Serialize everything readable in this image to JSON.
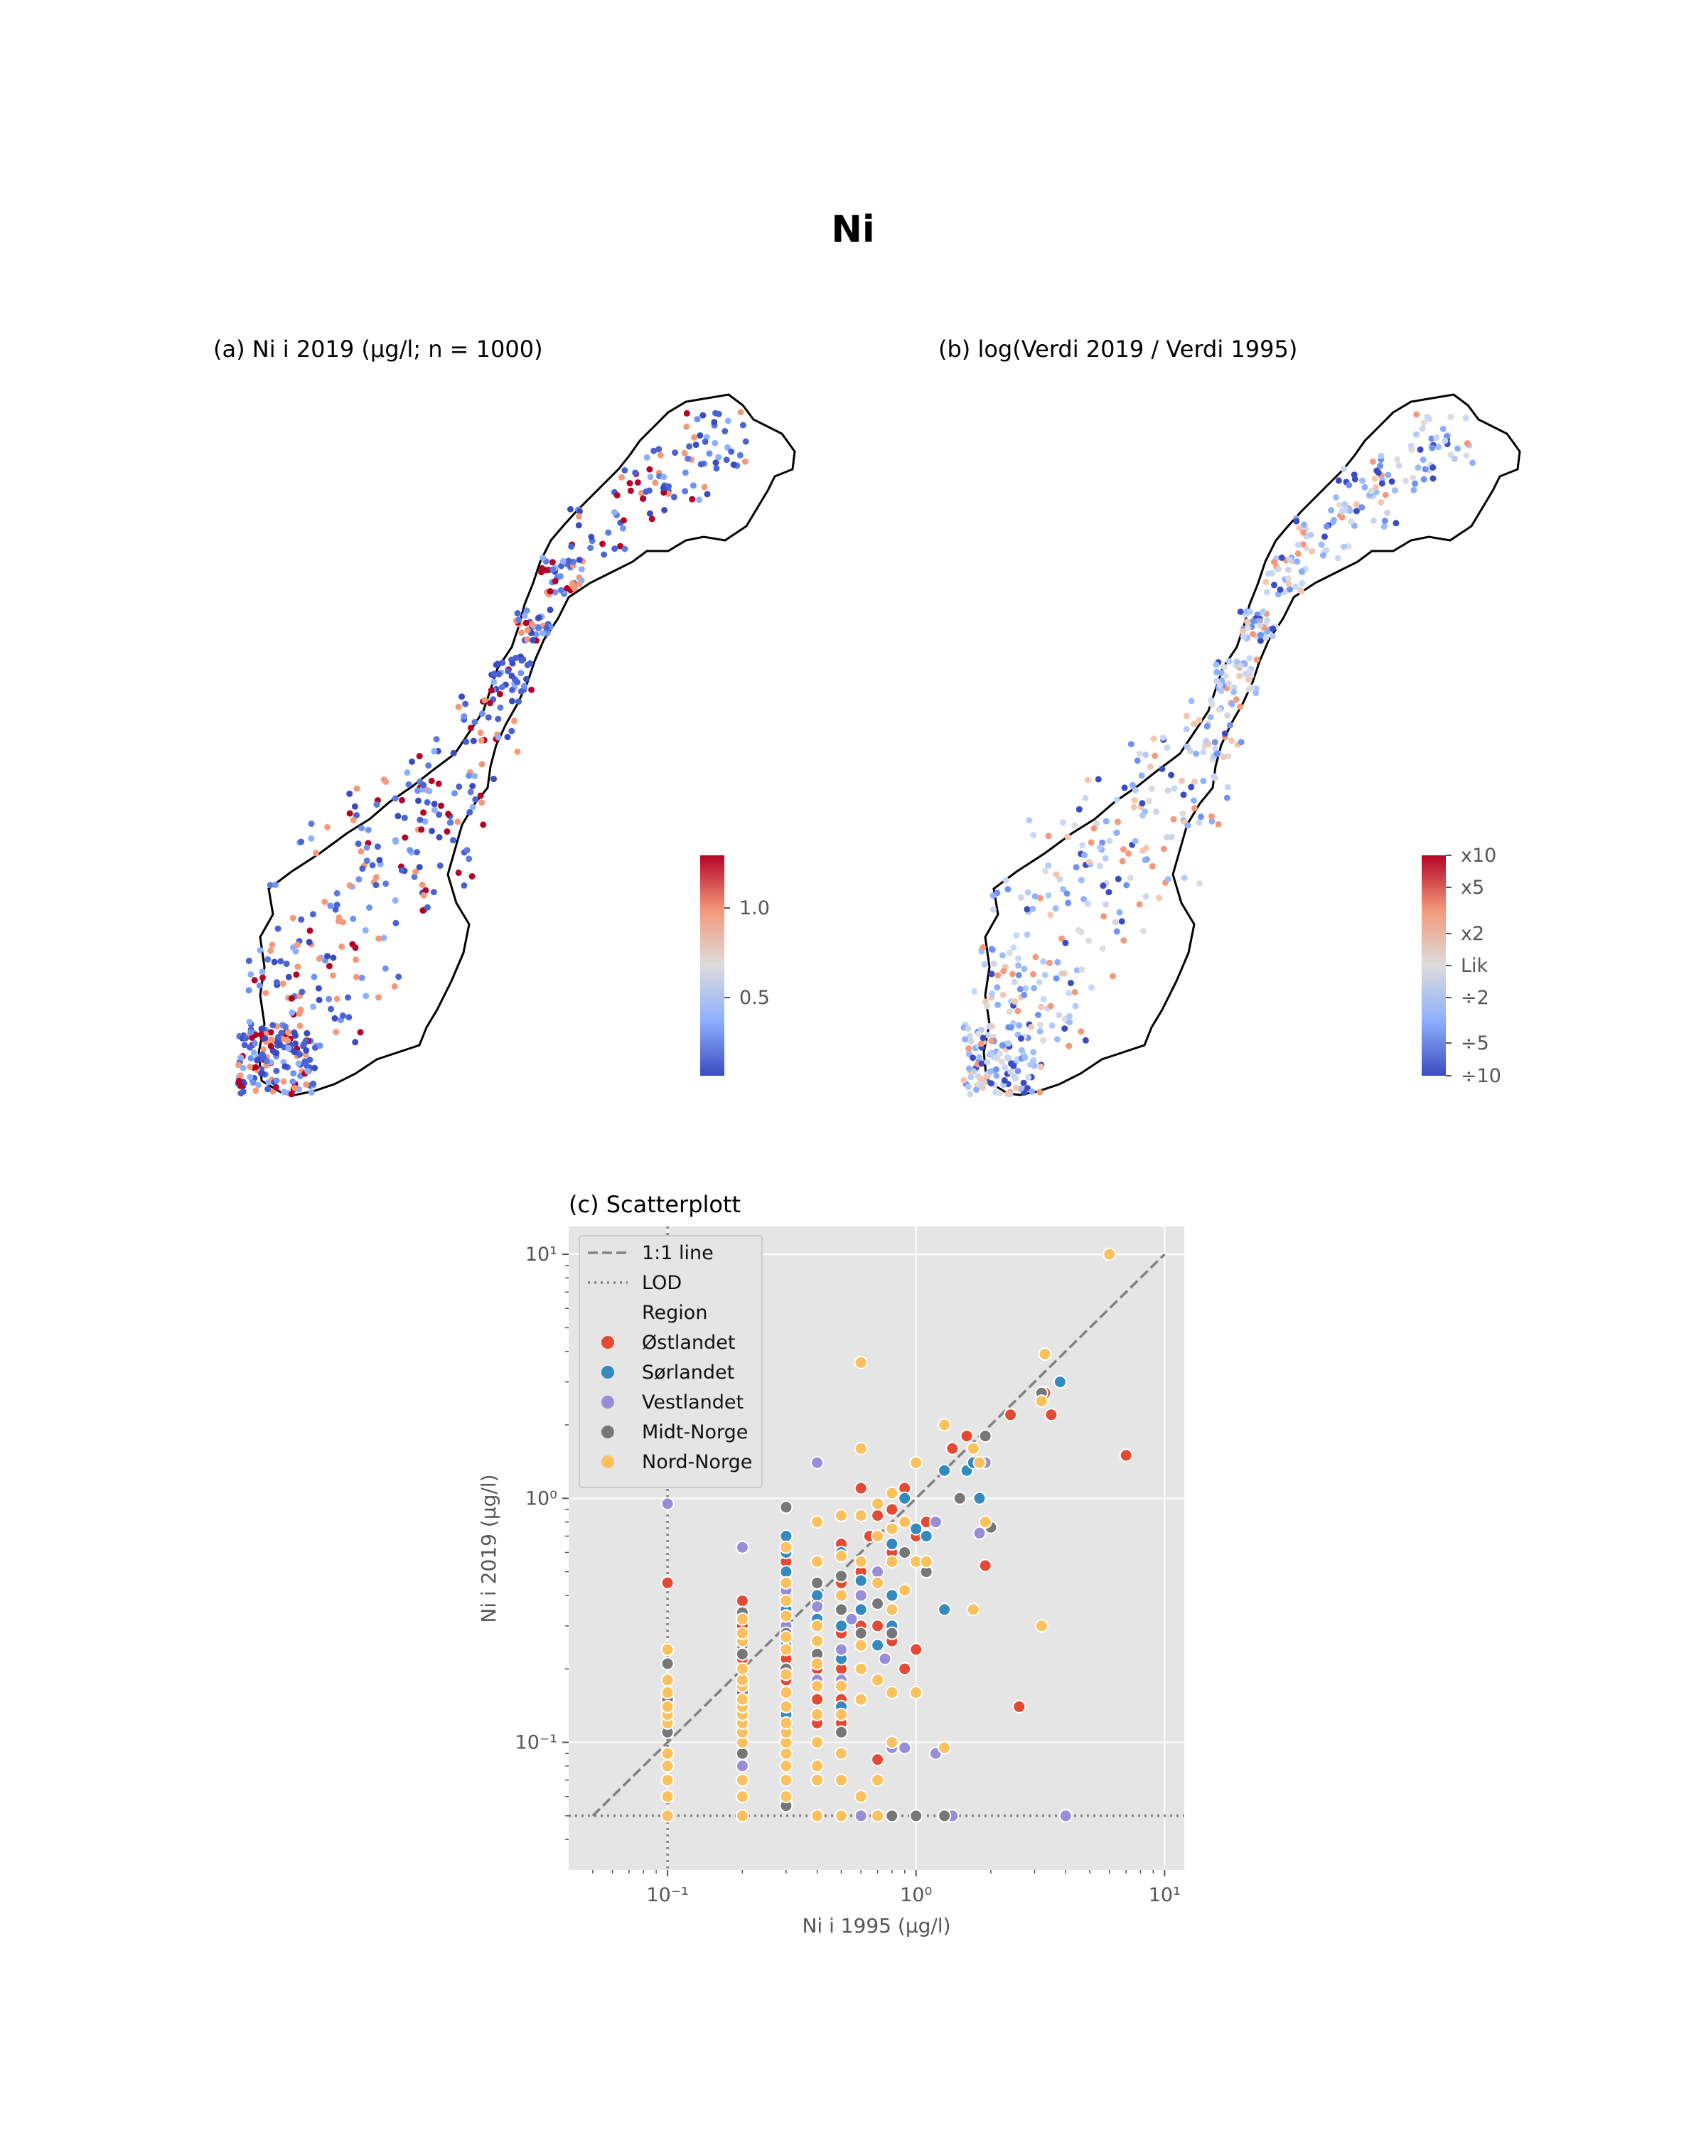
{
  "figure": {
    "title": "Ni"
  },
  "panel_a": {
    "title": "(a) Ni i 2019 (µg/l; n = 1000)",
    "colorbar": {
      "colormap": "coolwarm",
      "ticks": [
        "1.0",
        "0.5"
      ],
      "colors": [
        "#3b4cc0",
        "#8db0fe",
        "#dddcdc",
        "#f49a7b",
        "#b40426"
      ]
    }
  },
  "panel_b": {
    "title": "(b) log(Verdi 2019 / Verdi 1995)",
    "colorbar": {
      "colormap": "coolwarm",
      "ticks": [
        "x10",
        "x5",
        "x2",
        "Lik",
        "÷2",
        "÷5",
        "÷10"
      ],
      "colors": [
        "#3b4cc0",
        "#8db0fe",
        "#dddcdc",
        "#f49a7b",
        "#b40426"
      ]
    }
  },
  "chart_data": [
    {
      "type": "scatter",
      "title": "(c) Scatterplott",
      "xlabel": "Ni i 1995 (µg/l)",
      "ylabel": "Ni i 2019 (µg/l)",
      "xscale": "log",
      "yscale": "log",
      "xlim": [
        0.04,
        12
      ],
      "ylim": [
        0.03,
        13
      ],
      "x_ticks": [
        "10⁻¹",
        "10⁰",
        "10¹"
      ],
      "y_ticks": [
        "10¹",
        "10⁰",
        "10⁻¹"
      ],
      "grid": true,
      "legend_position": "top-left",
      "legend": {
        "lines": [
          {
            "label": "1:1 line",
            "style": "dashed"
          },
          {
            "label": "LOD",
            "style": "dotted"
          }
        ],
        "group_title": "Region",
        "regions": [
          {
            "name": "Østlandet",
            "color": "#e24a33"
          },
          {
            "name": "Sørlandet",
            "color": "#348abd"
          },
          {
            "name": "Vestlandet",
            "color": "#988ed5"
          },
          {
            "name": "Midt-Norge",
            "color": "#777777"
          },
          {
            "name": "Nord-Norge",
            "color": "#fbc15e"
          }
        ]
      },
      "reference_lines": {
        "one_to_one": {
          "from": 0.05,
          "to": 10
        },
        "lod_x": 0.1,
        "lod_y": 0.05
      },
      "series": [
        {
          "name": "Østlandet",
          "points": [
            [
              0.1,
              0.45
            ],
            [
              0.2,
              0.38
            ],
            [
              0.2,
              0.3
            ],
            [
              0.2,
              0.22
            ],
            [
              0.3,
              0.55
            ],
            [
              0.3,
              0.4
            ],
            [
              0.3,
              0.3
            ],
            [
              0.3,
              0.22
            ],
            [
              0.3,
              0.18
            ],
            [
              0.3,
              0.12
            ],
            [
              0.4,
              0.38
            ],
            [
              0.4,
              0.3
            ],
            [
              0.4,
              0.2
            ],
            [
              0.4,
              0.15
            ],
            [
              0.4,
              0.12
            ],
            [
              0.5,
              0.65
            ],
            [
              0.5,
              0.45
            ],
            [
              0.5,
              0.28
            ],
            [
              0.5,
              0.2
            ],
            [
              0.5,
              0.15
            ],
            [
              0.5,
              0.12
            ],
            [
              0.6,
              0.06
            ],
            [
              0.6,
              0.3
            ],
            [
              0.6,
              0.5
            ],
            [
              0.7,
              0.85
            ],
            [
              0.7,
              0.3
            ],
            [
              0.7,
              0.085
            ],
            [
              0.8,
              0.9
            ],
            [
              0.8,
              0.6
            ],
            [
              0.8,
              0.26
            ],
            [
              0.9,
              1.1
            ],
            [
              0.9,
              0.2
            ],
            [
              1.0,
              0.24
            ],
            [
              1.0,
              0.7
            ],
            [
              1.1,
              0.8
            ],
            [
              1.4,
              1.6
            ],
            [
              1.6,
              1.8
            ],
            [
              1.9,
              0.53
            ],
            [
              2.4,
              2.2
            ],
            [
              2.6,
              0.14
            ],
            [
              3.3,
              2.7
            ],
            [
              3.5,
              2.2
            ],
            [
              7.0,
              1.5
            ],
            [
              0.6,
              1.1
            ],
            [
              0.65,
              0.7
            ]
          ]
        },
        {
          "name": "Sørlandet",
          "points": [
            [
              0.2,
              0.25
            ],
            [
              0.3,
              0.7
            ],
            [
              0.3,
              0.6
            ],
            [
              0.3,
              0.5
            ],
            [
              0.3,
              0.35
            ],
            [
              0.3,
              0.13
            ],
            [
              0.3,
              0.25
            ],
            [
              0.4,
              0.4
            ],
            [
              0.4,
              0.32
            ],
            [
              0.5,
              0.6
            ],
            [
              0.5,
              0.3
            ],
            [
              0.5,
              0.22
            ],
            [
              0.5,
              0.14
            ],
            [
              0.6,
              0.46
            ],
            [
              0.6,
              0.35
            ],
            [
              0.7,
              0.5
            ],
            [
              0.7,
              0.25
            ],
            [
              0.8,
              0.65
            ],
            [
              0.8,
              0.4
            ],
            [
              0.8,
              0.3
            ],
            [
              0.9,
              1.0
            ],
            [
              1.0,
              0.75
            ],
            [
              1.1,
              0.7
            ],
            [
              1.2,
              0.8
            ],
            [
              1.3,
              1.3
            ],
            [
              1.3,
              0.35
            ],
            [
              1.6,
              1.3
            ],
            [
              1.7,
              1.4
            ],
            [
              1.8,
              1.0
            ],
            [
              3.8,
              3.0
            ]
          ]
        },
        {
          "name": "Vestlandet",
          "points": [
            [
              0.1,
              0.95
            ],
            [
              0.2,
              0.63
            ],
            [
              0.2,
              0.08
            ],
            [
              0.3,
              0.056
            ],
            [
              0.3,
              0.42
            ],
            [
              0.3,
              0.3
            ],
            [
              0.4,
              1.4
            ],
            [
              0.4,
              0.36
            ],
            [
              0.4,
              0.18
            ],
            [
              0.5,
              0.24
            ],
            [
              0.5,
              0.18
            ],
            [
              0.6,
              0.05
            ],
            [
              0.6,
              0.4
            ],
            [
              0.7,
              0.05
            ],
            [
              0.7,
              0.5
            ],
            [
              0.75,
              0.22
            ],
            [
              0.8,
              0.05
            ],
            [
              0.8,
              0.095
            ],
            [
              0.9,
              0.095
            ],
            [
              1.0,
              0.05
            ],
            [
              1.2,
              0.09
            ],
            [
              1.3,
              0.05
            ],
            [
              1.4,
              0.05
            ],
            [
              1.8,
              0.72
            ],
            [
              1.9,
              1.4
            ],
            [
              4.0,
              0.05
            ],
            [
              1.2,
              0.8
            ],
            [
              0.55,
              0.32
            ]
          ]
        },
        {
          "name": "Midt-Norge",
          "points": [
            [
              0.1,
              0.21
            ],
            [
              0.1,
              0.15
            ],
            [
              0.1,
              0.11
            ],
            [
              0.2,
              0.34
            ],
            [
              0.2,
              0.23
            ],
            [
              0.2,
              0.16
            ],
            [
              0.2,
              0.09
            ],
            [
              0.3,
              0.92
            ],
            [
              0.3,
              0.055
            ],
            [
              0.3,
              0.2
            ],
            [
              0.3,
              0.28
            ],
            [
              0.4,
              0.45
            ],
            [
              0.4,
              0.23
            ],
            [
              0.5,
              0.48
            ],
            [
              0.5,
              0.35
            ],
            [
              0.5,
              0.11
            ],
            [
              0.6,
              0.28
            ],
            [
              0.7,
              0.37
            ],
            [
              0.8,
              0.28
            ],
            [
              0.8,
              0.05
            ],
            [
              0.9,
              0.6
            ],
            [
              1.0,
              0.05
            ],
            [
              1.1,
              0.5
            ],
            [
              1.3,
              0.05
            ],
            [
              1.5,
              1.0
            ],
            [
              1.9,
              1.8
            ],
            [
              2.0,
              0.76
            ],
            [
              3.2,
              2.7
            ]
          ]
        },
        {
          "name": "Nord-Norge",
          "points": [
            [
              0.1,
              0.05
            ],
            [
              0.1,
              0.06
            ],
            [
              0.1,
              0.07
            ],
            [
              0.1,
              0.08
            ],
            [
              0.1,
              0.09
            ],
            [
              0.1,
              0.12
            ],
            [
              0.1,
              0.13
            ],
            [
              0.1,
              0.14
            ],
            [
              0.1,
              0.16
            ],
            [
              0.1,
              0.18
            ],
            [
              0.1,
              0.24
            ],
            [
              0.2,
              0.05
            ],
            [
              0.2,
              0.06
            ],
            [
              0.2,
              0.07
            ],
            [
              0.2,
              0.1
            ],
            [
              0.2,
              0.11
            ],
            [
              0.2,
              0.12
            ],
            [
              0.2,
              0.13
            ],
            [
              0.2,
              0.14
            ],
            [
              0.2,
              0.15
            ],
            [
              0.2,
              0.17
            ],
            [
              0.2,
              0.18
            ],
            [
              0.2,
              0.2
            ],
            [
              0.2,
              0.26
            ],
            [
              0.2,
              0.28
            ],
            [
              0.2,
              0.32
            ],
            [
              0.2,
              1.25
            ],
            [
              0.3,
              0.06
            ],
            [
              0.3,
              0.07
            ],
            [
              0.3,
              0.08
            ],
            [
              0.3,
              0.09
            ],
            [
              0.3,
              0.1
            ],
            [
              0.3,
              0.11
            ],
            [
              0.3,
              0.12
            ],
            [
              0.3,
              0.14
            ],
            [
              0.3,
              0.16
            ],
            [
              0.3,
              0.19
            ],
            [
              0.3,
              0.24
            ],
            [
              0.3,
              0.27
            ],
            [
              0.3,
              0.33
            ],
            [
              0.3,
              0.38
            ],
            [
              0.3,
              0.45
            ],
            [
              0.3,
              0.63
            ],
            [
              0.4,
              0.05
            ],
            [
              0.4,
              0.07
            ],
            [
              0.4,
              0.08
            ],
            [
              0.4,
              0.1
            ],
            [
              0.4,
              0.13
            ],
            [
              0.4,
              0.17
            ],
            [
              0.4,
              0.21
            ],
            [
              0.4,
              0.26
            ],
            [
              0.4,
              0.3
            ],
            [
              0.4,
              0.55
            ],
            [
              0.4,
              0.8
            ],
            [
              0.5,
              0.05
            ],
            [
              0.5,
              0.07
            ],
            [
              0.5,
              0.09
            ],
            [
              0.5,
              0.13
            ],
            [
              0.5,
              0.17
            ],
            [
              0.5,
              0.4
            ],
            [
              0.5,
              0.58
            ],
            [
              0.5,
              0.85
            ],
            [
              0.6,
              0.06
            ],
            [
              0.6,
              0.15
            ],
            [
              0.6,
              0.2
            ],
            [
              0.6,
              0.25
            ],
            [
              0.6,
              0.55
            ],
            [
              0.6,
              0.85
            ],
            [
              0.6,
              1.6
            ],
            [
              0.6,
              3.6
            ],
            [
              0.7,
              0.05
            ],
            [
              0.7,
              0.07
            ],
            [
              0.7,
              0.18
            ],
            [
              0.7,
              0.45
            ],
            [
              0.7,
              0.7
            ],
            [
              0.7,
              0.95
            ],
            [
              0.8,
              0.1
            ],
            [
              0.8,
              0.16
            ],
            [
              0.8,
              0.35
            ],
            [
              0.8,
              0.55
            ],
            [
              0.8,
              0.75
            ],
            [
              0.8,
              1.05
            ],
            [
              0.9,
              0.42
            ],
            [
              0.9,
              0.8
            ],
            [
              1.0,
              0.16
            ],
            [
              1.0,
              0.55
            ],
            [
              1.0,
              1.4
            ],
            [
              1.1,
              0.55
            ],
            [
              1.3,
              0.095
            ],
            [
              1.3,
              2.0
            ],
            [
              1.7,
              0.35
            ],
            [
              1.7,
              1.6
            ],
            [
              1.8,
              1.4
            ],
            [
              1.9,
              0.8
            ],
            [
              3.2,
              0.3
            ],
            [
              3.2,
              2.5
            ],
            [
              3.3,
              3.9
            ],
            [
              6.0,
              10.0
            ]
          ]
        }
      ]
    }
  ]
}
